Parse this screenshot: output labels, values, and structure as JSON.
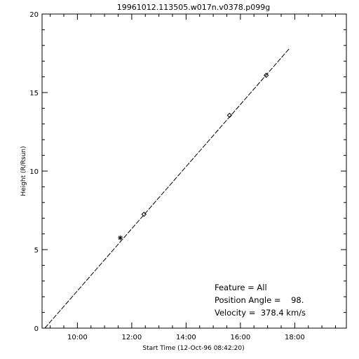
{
  "chart_data": {
    "type": "scatter",
    "title": "19961012.113505.w017n.v0378.p099g",
    "xlabel": "Start Time (12-Oct-96 08:42:20)",
    "ylabel": "Height (R/Rsun)",
    "x_unit": "hours",
    "xlim": [
      8.7,
      19.9
    ],
    "ylim": [
      0,
      20
    ],
    "x_ticks": [
      {
        "value": 10,
        "label": "10:00"
      },
      {
        "value": 12,
        "label": "12:00"
      },
      {
        "value": 14,
        "label": "14:00"
      },
      {
        "value": 16,
        "label": "16:00"
      },
      {
        "value": 18,
        "label": "18:00"
      }
    ],
    "y_ticks": [
      {
        "value": 0,
        "label": "0"
      },
      {
        "value": 5,
        "label": "5"
      },
      {
        "value": 10,
        "label": "10"
      },
      {
        "value": 15,
        "label": "15"
      },
      {
        "value": 20,
        "label": "20"
      }
    ],
    "series": [
      {
        "points": [
          {
            "x": 11.58,
            "y": 5.75,
            "marker": "asterisk"
          },
          {
            "x": 12.45,
            "y": 7.25,
            "marker": "diamond"
          },
          {
            "x": 15.6,
            "y": 13.55,
            "marker": "diamond"
          },
          {
            "x": 16.95,
            "y": 16.1,
            "marker": "diamond"
          }
        ]
      }
    ],
    "fit_line": {
      "x_start": 8.8,
      "y_start": 0,
      "x_end": 17.8,
      "y_end": 17.8,
      "style": "dashed"
    },
    "annotations": [
      "Feature = All",
      "Position Angle =    98.",
      "Velocity =  378.4 km/s"
    ],
    "grid": false
  }
}
